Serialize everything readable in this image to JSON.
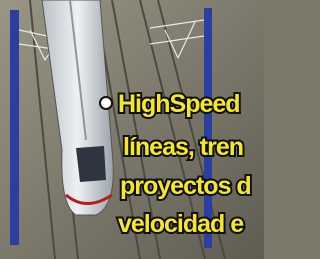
{
  "overlay": {
    "lines": [
      "HighSpeed",
      "líneas, tren",
      "proyectos d",
      "velocidad e"
    ]
  }
}
